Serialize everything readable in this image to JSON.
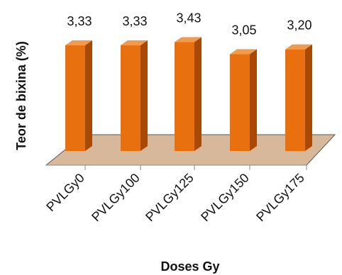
{
  "chart_data": {
    "type": "bar",
    "title": "",
    "xlabel": "Doses Gy",
    "ylabel": "Teor de bixina (%)",
    "categories": [
      "PVLGy0",
      "PVLGy100",
      "PVLGy125",
      "PVLGy150",
      "PVLGy175"
    ],
    "values": [
      3.33,
      3.33,
      3.43,
      3.05,
      3.2
    ],
    "value_labels": [
      "3,33",
      "3,33",
      "3,43",
      "3,05",
      "3,20"
    ],
    "ylim": [
      0,
      3.6
    ],
    "grid": false,
    "legend": "none",
    "style": "3d-column",
    "colors": {
      "bar_front": "#E8700E",
      "bar_side": "#A84A06",
      "bar_top": "#F39A4A",
      "floor": "#D8B89A",
      "floor_edge": "#5a5a5a",
      "axis": "#888888"
    }
  }
}
